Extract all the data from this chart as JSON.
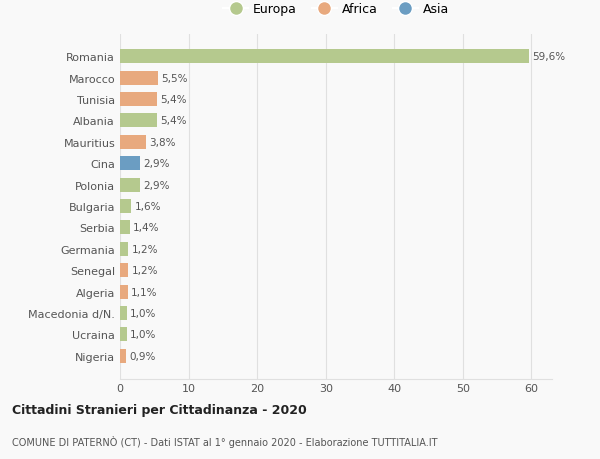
{
  "countries": [
    "Romania",
    "Marocco",
    "Tunisia",
    "Albania",
    "Mauritius",
    "Cina",
    "Polonia",
    "Bulgaria",
    "Serbia",
    "Germania",
    "Senegal",
    "Algeria",
    "Macedonia d/N.",
    "Ucraina",
    "Nigeria"
  ],
  "values": [
    59.6,
    5.5,
    5.4,
    5.4,
    3.8,
    2.9,
    2.9,
    1.6,
    1.4,
    1.2,
    1.2,
    1.1,
    1.0,
    1.0,
    0.9
  ],
  "labels": [
    "59,6%",
    "5,5%",
    "5,4%",
    "5,4%",
    "3,8%",
    "2,9%",
    "2,9%",
    "1,6%",
    "1,4%",
    "1,2%",
    "1,2%",
    "1,1%",
    "1,0%",
    "1,0%",
    "0,9%"
  ],
  "continents": [
    "Europa",
    "Africa",
    "Africa",
    "Europa",
    "Africa",
    "Asia",
    "Europa",
    "Europa",
    "Europa",
    "Europa",
    "Africa",
    "Africa",
    "Europa",
    "Europa",
    "Africa"
  ],
  "colors": {
    "Europa": "#b5c98e",
    "Africa": "#e8a97e",
    "Asia": "#6b9dc2"
  },
  "legend_labels": [
    "Europa",
    "Africa",
    "Asia"
  ],
  "legend_colors": [
    "#b5c98e",
    "#e8a97e",
    "#6b9dc2"
  ],
  "xlim": [
    0,
    63
  ],
  "xticks": [
    0,
    10,
    20,
    30,
    40,
    50,
    60
  ],
  "title": "Cittadini Stranieri per Cittadinanza - 2020",
  "subtitle": "COMUNE DI PATERNÒ (CT) - Dati ISTAT al 1° gennaio 2020 - Elaborazione TUTTITALIA.IT",
  "background_color": "#f9f9f9",
  "grid_color": "#e0e0e0"
}
